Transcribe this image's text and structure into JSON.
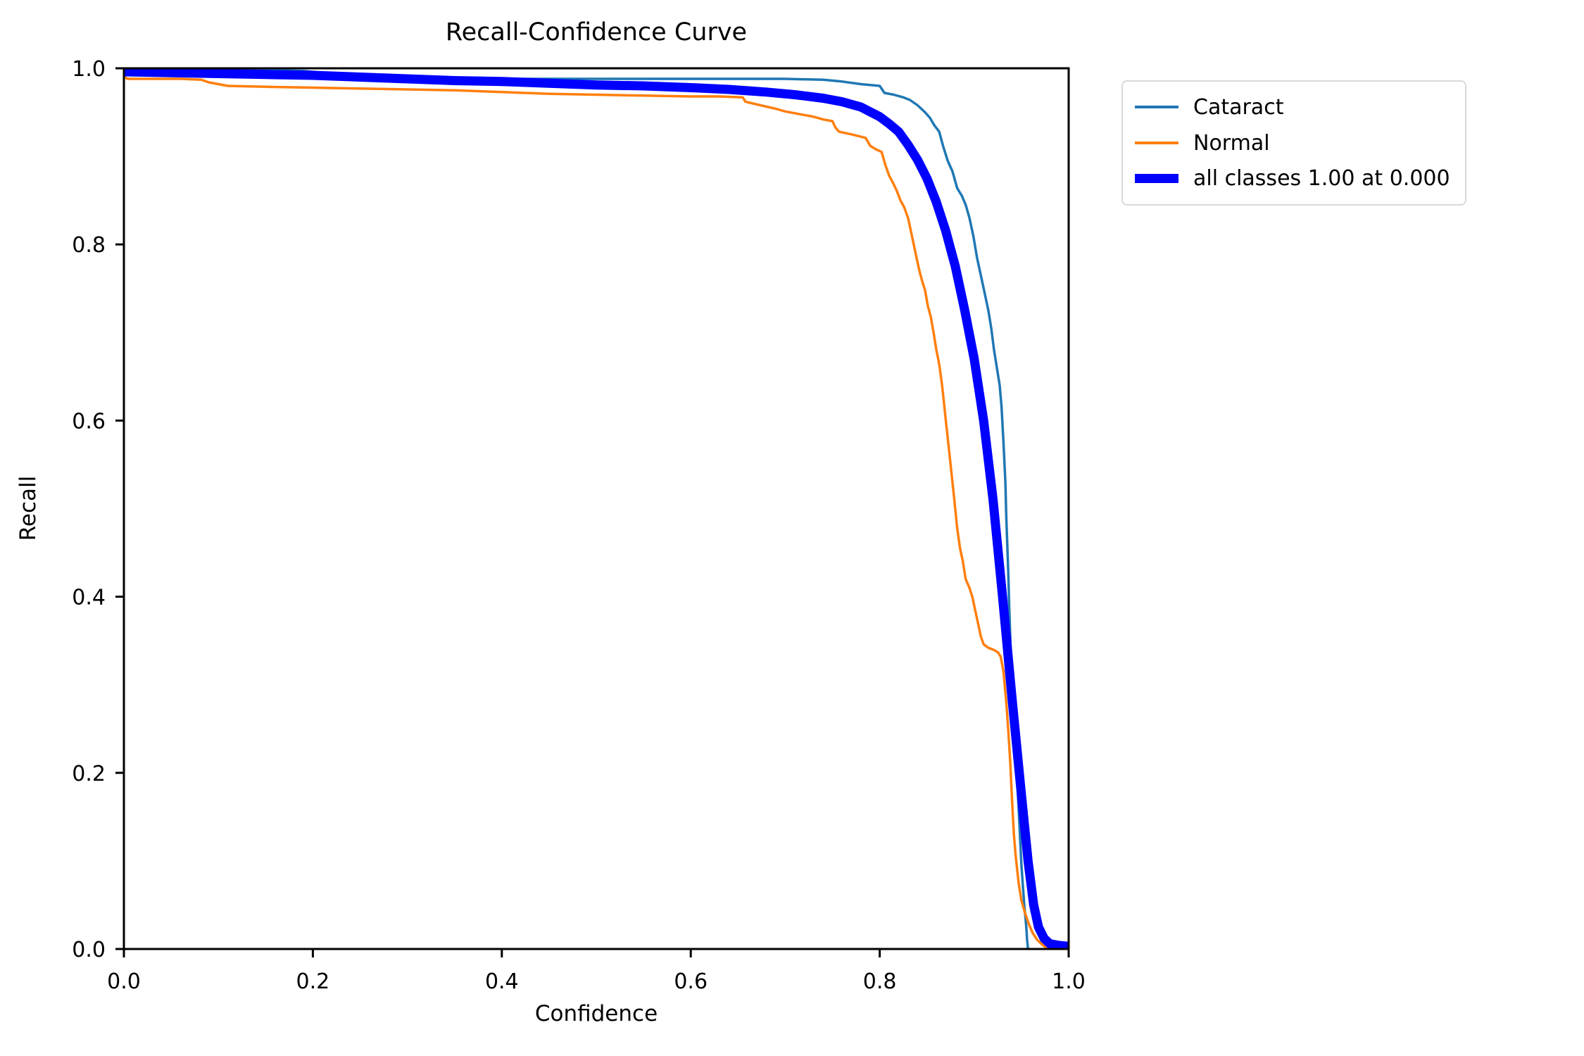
{
  "figure": {
    "background_color": "#ffffff",
    "text_color": "#000000",
    "axis_color": "#000000"
  },
  "chart_data": {
    "type": "line",
    "title": "Recall-Confidence Curve",
    "xlabel": "Confidence",
    "ylabel": "Recall",
    "xlim": [
      0.0,
      1.0
    ],
    "ylim": [
      0.0,
      1.0
    ],
    "xticks": [
      "0.0",
      "0.2",
      "0.4",
      "0.6",
      "0.8",
      "1.0"
    ],
    "yticks": [
      "0.0",
      "0.2",
      "0.4",
      "0.6",
      "0.8",
      "1.0"
    ],
    "grid": false,
    "legend": {
      "position": "outside-upper-right",
      "border_color": "#d9d9d9",
      "background": "#ffffff"
    },
    "series": [
      {
        "name": "cataract",
        "label": "Cataract",
        "color": "#1f77b4",
        "line_width": 3.5,
        "points": [
          [
            0.0,
            0.998
          ],
          [
            0.05,
            0.998
          ],
          [
            0.1,
            0.998
          ],
          [
            0.15,
            0.998
          ],
          [
            0.19,
            0.997
          ],
          [
            0.21,
            0.995
          ],
          [
            0.23,
            0.99
          ],
          [
            0.25,
            0.988
          ],
          [
            0.3,
            0.988
          ],
          [
            0.35,
            0.988
          ],
          [
            0.4,
            0.988
          ],
          [
            0.45,
            0.988
          ],
          [
            0.5,
            0.988
          ],
          [
            0.55,
            0.988
          ],
          [
            0.6,
            0.988
          ],
          [
            0.65,
            0.988
          ],
          [
            0.7,
            0.988
          ],
          [
            0.74,
            0.987
          ],
          [
            0.76,
            0.985
          ],
          [
            0.78,
            0.982
          ],
          [
            0.8,
            0.98
          ],
          [
            0.805,
            0.972
          ],
          [
            0.815,
            0.97
          ],
          [
            0.825,
            0.967
          ],
          [
            0.832,
            0.964
          ],
          [
            0.84,
            0.958
          ],
          [
            0.848,
            0.95
          ],
          [
            0.853,
            0.944
          ],
          [
            0.858,
            0.935
          ],
          [
            0.863,
            0.928
          ],
          [
            0.867,
            0.912
          ],
          [
            0.872,
            0.895
          ],
          [
            0.877,
            0.883
          ],
          [
            0.882,
            0.864
          ],
          [
            0.887,
            0.855
          ],
          [
            0.891,
            0.845
          ],
          [
            0.895,
            0.83
          ],
          [
            0.899,
            0.81
          ],
          [
            0.903,
            0.785
          ],
          [
            0.907,
            0.765
          ],
          [
            0.911,
            0.745
          ],
          [
            0.915,
            0.725
          ],
          [
            0.918,
            0.705
          ],
          [
            0.921,
            0.68
          ],
          [
            0.924,
            0.66
          ],
          [
            0.927,
            0.64
          ],
          [
            0.929,
            0.615
          ],
          [
            0.931,
            0.575
          ],
          [
            0.933,
            0.53
          ],
          [
            0.934,
            0.49
          ],
          [
            0.936,
            0.43
          ],
          [
            0.937,
            0.39
          ],
          [
            0.939,
            0.33
          ],
          [
            0.941,
            0.29
          ],
          [
            0.944,
            0.22
          ],
          [
            0.947,
            0.16
          ],
          [
            0.95,
            0.095
          ],
          [
            0.953,
            0.05
          ],
          [
            0.955,
            0.027
          ],
          [
            0.956,
            0.01
          ],
          [
            0.957,
            0.0
          ]
        ]
      },
      {
        "name": "normal",
        "label": "Normal",
        "color": "#ff7f0e",
        "line_width": 3.5,
        "points": [
          [
            0.0,
            0.99
          ],
          [
            0.004,
            0.988
          ],
          [
            0.03,
            0.988
          ],
          [
            0.06,
            0.988
          ],
          [
            0.082,
            0.987
          ],
          [
            0.09,
            0.984
          ],
          [
            0.1,
            0.982
          ],
          [
            0.11,
            0.98
          ],
          [
            0.15,
            0.979
          ],
          [
            0.2,
            0.978
          ],
          [
            0.25,
            0.977
          ],
          [
            0.3,
            0.976
          ],
          [
            0.35,
            0.975
          ],
          [
            0.4,
            0.973
          ],
          [
            0.45,
            0.971
          ],
          [
            0.5,
            0.97
          ],
          [
            0.55,
            0.969
          ],
          [
            0.6,
            0.968
          ],
          [
            0.63,
            0.968
          ],
          [
            0.655,
            0.967
          ],
          [
            0.658,
            0.962
          ],
          [
            0.67,
            0.959
          ],
          [
            0.69,
            0.954
          ],
          [
            0.7,
            0.951
          ],
          [
            0.71,
            0.949
          ],
          [
            0.72,
            0.947
          ],
          [
            0.73,
            0.945
          ],
          [
            0.74,
            0.942
          ],
          [
            0.75,
            0.94
          ],
          [
            0.753,
            0.933
          ],
          [
            0.757,
            0.928
          ],
          [
            0.77,
            0.925
          ],
          [
            0.785,
            0.921
          ],
          [
            0.79,
            0.912
          ],
          [
            0.796,
            0.908
          ],
          [
            0.802,
            0.905
          ],
          [
            0.806,
            0.89
          ],
          [
            0.81,
            0.878
          ],
          [
            0.814,
            0.87
          ],
          [
            0.818,
            0.861
          ],
          [
            0.822,
            0.85
          ],
          [
            0.826,
            0.842
          ],
          [
            0.83,
            0.83
          ],
          [
            0.833,
            0.815
          ],
          [
            0.836,
            0.8
          ],
          [
            0.839,
            0.785
          ],
          [
            0.842,
            0.77
          ],
          [
            0.845,
            0.758
          ],
          [
            0.848,
            0.748
          ],
          [
            0.851,
            0.73
          ],
          [
            0.854,
            0.718
          ],
          [
            0.857,
            0.7
          ],
          [
            0.86,
            0.68
          ],
          [
            0.863,
            0.664
          ],
          [
            0.866,
            0.64
          ],
          [
            0.868,
            0.62
          ],
          [
            0.87,
            0.6
          ],
          [
            0.873,
            0.57
          ],
          [
            0.876,
            0.54
          ],
          [
            0.879,
            0.51
          ],
          [
            0.882,
            0.478
          ],
          [
            0.885,
            0.455
          ],
          [
            0.888,
            0.44
          ],
          [
            0.891,
            0.42
          ],
          [
            0.895,
            0.41
          ],
          [
            0.898,
            0.4
          ],
          [
            0.901,
            0.385
          ],
          [
            0.904,
            0.37
          ],
          [
            0.907,
            0.355
          ],
          [
            0.91,
            0.346
          ],
          [
            0.915,
            0.342
          ],
          [
            0.92,
            0.34
          ],
          [
            0.925,
            0.337
          ],
          [
            0.928,
            0.332
          ],
          [
            0.931,
            0.315
          ],
          [
            0.934,
            0.28
          ],
          [
            0.936,
            0.25
          ],
          [
            0.938,
            0.215
          ],
          [
            0.94,
            0.17
          ],
          [
            0.942,
            0.13
          ],
          [
            0.944,
            0.105
          ],
          [
            0.947,
            0.075
          ],
          [
            0.95,
            0.055
          ],
          [
            0.954,
            0.04
          ],
          [
            0.958,
            0.028
          ],
          [
            0.962,
            0.018
          ],
          [
            0.967,
            0.01
          ],
          [
            0.972,
            0.005
          ],
          [
            0.978,
            0.0
          ]
        ]
      },
      {
        "name": "all-classes",
        "label": "all classes 1.00 at 0.000",
        "color": "#0000ff",
        "line_width": 13,
        "points": [
          [
            0.0,
            0.996
          ],
          [
            0.05,
            0.995
          ],
          [
            0.1,
            0.994
          ],
          [
            0.15,
            0.993
          ],
          [
            0.2,
            0.992
          ],
          [
            0.25,
            0.99
          ],
          [
            0.3,
            0.988
          ],
          [
            0.35,
            0.986
          ],
          [
            0.4,
            0.985
          ],
          [
            0.45,
            0.983
          ],
          [
            0.5,
            0.981
          ],
          [
            0.55,
            0.98
          ],
          [
            0.6,
            0.978
          ],
          [
            0.64,
            0.976
          ],
          [
            0.68,
            0.973
          ],
          [
            0.71,
            0.97
          ],
          [
            0.74,
            0.966
          ],
          [
            0.76,
            0.962
          ],
          [
            0.78,
            0.956
          ],
          [
            0.8,
            0.945
          ],
          [
            0.81,
            0.937
          ],
          [
            0.82,
            0.928
          ],
          [
            0.83,
            0.913
          ],
          [
            0.84,
            0.896
          ],
          [
            0.85,
            0.875
          ],
          [
            0.86,
            0.848
          ],
          [
            0.87,
            0.815
          ],
          [
            0.88,
            0.775
          ],
          [
            0.89,
            0.725
          ],
          [
            0.9,
            0.67
          ],
          [
            0.91,
            0.6
          ],
          [
            0.92,
            0.51
          ],
          [
            0.93,
            0.4
          ],
          [
            0.94,
            0.285
          ],
          [
            0.95,
            0.175
          ],
          [
            0.957,
            0.1
          ],
          [
            0.963,
            0.05
          ],
          [
            0.968,
            0.025
          ],
          [
            0.974,
            0.012
          ],
          [
            0.98,
            0.006
          ],
          [
            0.99,
            0.004
          ],
          [
            1.0,
            0.003
          ]
        ]
      }
    ]
  }
}
